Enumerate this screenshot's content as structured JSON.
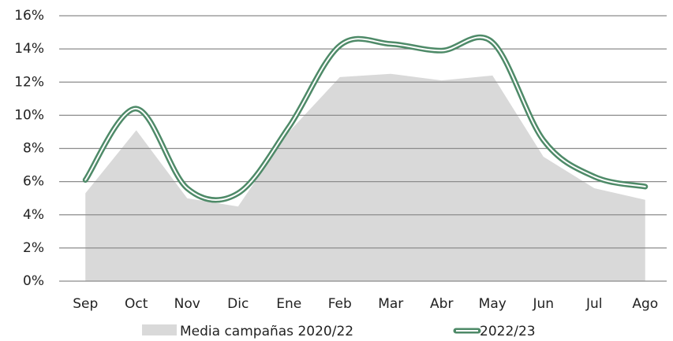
{
  "chart_data": {
    "type": "line",
    "categories": [
      "Sep",
      "Oct",
      "Nov",
      "Dic",
      "Ene",
      "Feb",
      "Mar",
      "Abr",
      "May",
      "Jun",
      "Jul",
      "Ago"
    ],
    "series": [
      {
        "name": "Media campañas 2020/22",
        "type": "area",
        "color": "#d9d9d9",
        "values": [
          5.3,
          9.1,
          5.0,
          4.5,
          9.0,
          12.3,
          12.5,
          12.1,
          12.4,
          7.5,
          5.6,
          4.9
        ]
      },
      {
        "name": "2022/23",
        "type": "line",
        "color": "#4e8a68",
        "values": [
          6.1,
          10.4,
          5.6,
          5.3,
          9.3,
          14.2,
          14.3,
          13.9,
          14.4,
          8.5,
          6.3,
          5.7
        ]
      }
    ],
    "ylim": [
      0,
      16
    ],
    "yticks": [
      {
        "value": 0,
        "label": "0%"
      },
      {
        "value": 2,
        "label": "2%"
      },
      {
        "value": 4,
        "label": "4%"
      },
      {
        "value": 6,
        "label": "6%"
      },
      {
        "value": 8,
        "label": "8%"
      },
      {
        "value": 10,
        "label": "10%"
      },
      {
        "value": 12,
        "label": "12%"
      },
      {
        "value": 14,
        "label": "14%"
      },
      {
        "value": 16,
        "label": "16%"
      }
    ],
    "grid": true,
    "legend": "bottom"
  }
}
